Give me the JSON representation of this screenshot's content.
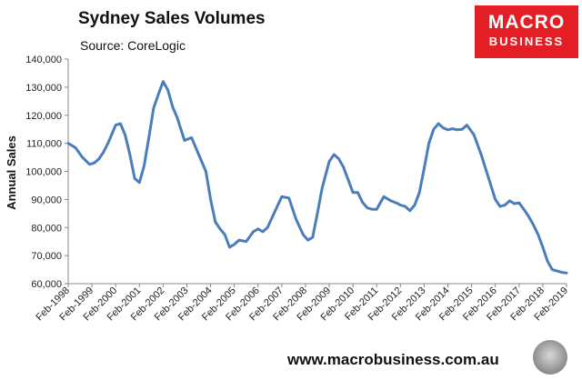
{
  "header": {
    "title": "Sydney Sales Volumes",
    "subtitle": "Source: CoreLogic"
  },
  "logo": {
    "line1": "MACRO",
    "line2": "BUSINESS"
  },
  "footer": {
    "website": "www.macrobusiness.com.au"
  },
  "colors": {
    "line": "#4a7ebb",
    "logo_bg": "#e31e25"
  },
  "chart_data": {
    "type": "line",
    "title": "Sydney Sales Volumes",
    "ylabel": "Annual Sales",
    "xlabel": "",
    "ylim": [
      60000,
      140000
    ],
    "yticks": [
      60000,
      70000,
      80000,
      90000,
      100000,
      110000,
      120000,
      130000,
      140000
    ],
    "ytick_labels": [
      "60,000",
      "70,000",
      "80,000",
      "90,000",
      "100,000",
      "110,000",
      "120,000",
      "130,000",
      "140,000"
    ],
    "xticks": [
      "Feb-1998",
      "Feb-1999",
      "Feb-2000",
      "Feb-2001",
      "Feb-2002",
      "Feb-2003",
      "Feb-2004",
      "Feb-2005",
      "Feb-2006",
      "Feb-2007",
      "Feb-2008",
      "Feb-2009",
      "Feb-2010",
      "Feb-2011",
      "Feb-2012",
      "Feb-2013",
      "Feb-2014",
      "Feb-2015",
      "Feb-2016",
      "Feb-2017",
      "Feb-2018",
      "Feb-2019"
    ],
    "grid": false,
    "series": [
      {
        "x": [
          1998.0,
          1998.3,
          1998.6,
          1998.9,
          1999.1,
          1999.3,
          1999.5,
          1999.7,
          2000.0,
          2000.2,
          2000.4,
          2000.6,
          2000.8,
          2001.0,
          2001.2,
          2001.4,
          2001.6,
          2001.8,
          2002.0,
          2002.2,
          2002.4,
          2002.6,
          2002.9,
          2003.2,
          2003.5,
          2003.8,
          2004.0,
          2004.2,
          2004.4,
          2004.6,
          2004.8,
          2005.0,
          2005.2,
          2005.5,
          2005.8,
          2006.0,
          2006.2,
          2006.4,
          2006.7,
          2007.0,
          2007.3,
          2007.6,
          2007.9,
          2008.1,
          2008.3,
          2008.5,
          2008.7,
          2009.0,
          2009.2,
          2009.4,
          2009.6,
          2009.8,
          2010.0,
          2010.2,
          2010.4,
          2010.6,
          2010.8,
          2011.0,
          2011.3,
          2011.6,
          2011.9,
          2012.0,
          2012.2,
          2012.4,
          2012.6,
          2012.8,
          2013.0,
          2013.2,
          2013.4,
          2013.6,
          2013.8,
          2014.0,
          2014.2,
          2014.4,
          2014.6,
          2014.8,
          2015.1,
          2015.4,
          2015.7,
          2016.0,
          2016.2,
          2016.4,
          2016.6,
          2016.8,
          2017.0,
          2017.2,
          2017.4,
          2017.6,
          2017.8,
          2018.0,
          2018.2,
          2018.4,
          2018.6,
          2018.8,
          2019.0
        ],
        "y": [
          110000,
          108500,
          105000,
          102500,
          103000,
          104500,
          107000,
          110500,
          116500,
          117000,
          113000,
          106000,
          97500,
          96000,
          102000,
          112000,
          122500,
          127500,
          132000,
          129000,
          123000,
          119000,
          111000,
          112000,
          106000,
          100000,
          90000,
          82000,
          79500,
          77500,
          73000,
          74000,
          75500,
          75000,
          78500,
          79500,
          78500,
          80000,
          85500,
          91000,
          90500,
          83000,
          77500,
          75500,
          76500,
          85000,
          94000,
          103500,
          106000,
          104500,
          101500,
          97000,
          92500,
          92500,
          89000,
          87000,
          86500,
          86500,
          91000,
          89500,
          88500,
          88000,
          87500,
          86000,
          88000,
          92500,
          101000,
          110000,
          115000,
          117000,
          115500,
          114800,
          115200,
          114800,
          115000,
          116500,
          113000,
          106000,
          98000,
          90000,
          87500,
          88000,
          89500,
          88500,
          88800,
          86500,
          84000,
          81000,
          77500,
          73000,
          68000,
          65000,
          64500,
          64000,
          63800
        ]
      }
    ]
  }
}
